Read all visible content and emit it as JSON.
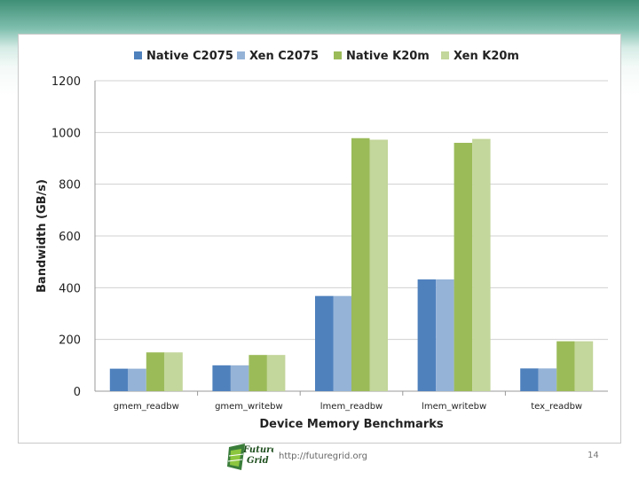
{
  "chart_data": {
    "type": "bar",
    "xlabel": "Device Memory Benchmarks",
    "ylabel": "Bandwidth (GB/s)",
    "ylim": [
      0,
      1200
    ],
    "yticks": [
      0,
      200,
      400,
      600,
      800,
      1000,
      1200
    ],
    "grid": true,
    "legend_position": "top",
    "categories": [
      "gmem_readbw",
      "gmem_writebw",
      "lmem_readbw",
      "lmem_writebw",
      "tex_readbw"
    ],
    "series": [
      {
        "name": "Native C2075",
        "color": "#4f81bd",
        "values": [
          87,
          100,
          368,
          432,
          88
        ]
      },
      {
        "name": "Xen C2075",
        "color": "#95b3d7",
        "values": [
          87,
          100,
          368,
          432,
          88
        ]
      },
      {
        "name": "Native K20m",
        "color": "#9bbb59",
        "values": [
          150,
          140,
          978,
          960,
          193
        ]
      },
      {
        "name": "Xen K20m",
        "color": "#c3d69b",
        "values": [
          150,
          140,
          972,
          975,
          193
        ]
      }
    ]
  },
  "footer": {
    "logo_text_line1": "Future",
    "logo_text_line2": "Grid",
    "url": "http://futuregrid.org",
    "page_number": "14"
  },
  "logo_icon": "futuregrid-logo-icon"
}
